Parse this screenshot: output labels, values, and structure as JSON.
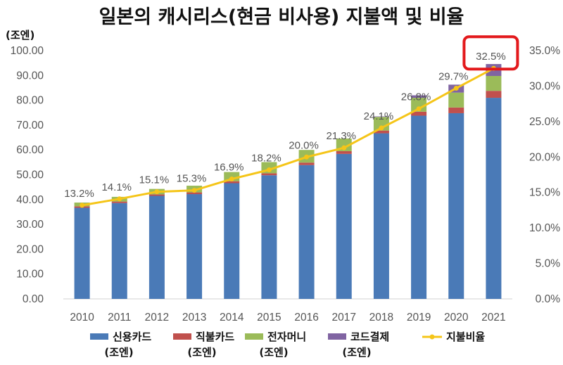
{
  "chart_data": {
    "type": "bar",
    "title": "일본의 캐시리스(현금 비사용) 지불액 및 비율",
    "left_axis_unit": "(조엔)",
    "categories": [
      "2010",
      "2011",
      "2012",
      "2013",
      "2014",
      "2015",
      "2016",
      "2017",
      "2018",
      "2019",
      "2020",
      "2021"
    ],
    "y_left_ticks": [
      "0.00",
      "10.00",
      "20.00",
      "30.00",
      "40.00",
      "50.00",
      "60.00",
      "70.00",
      "80.00",
      "90.00",
      "100.00"
    ],
    "y_right_ticks": [
      "0.0%",
      "5.0%",
      "10.0%",
      "15.0%",
      "20.0%",
      "25.0%",
      "30.0%",
      "35.0%"
    ],
    "ylim_left": [
      0,
      100
    ],
    "ylim_right": [
      0,
      35
    ],
    "stacked": true,
    "series": [
      {
        "name": "신용카드",
        "name_unit": "(조엔)",
        "color": "#4a7ab7",
        "values": [
          36.7,
          38.6,
          41.5,
          42.2,
          46.6,
          49.8,
          53.9,
          58.4,
          66.7,
          73.8,
          74.8,
          81.0
        ]
      },
      {
        "name": "직불카드",
        "name_unit": "(조엔)",
        "color": "#c0504d",
        "values": [
          0.6,
          0.6,
          0.6,
          0.7,
          0.8,
          0.8,
          1.0,
          1.1,
          1.1,
          1.6,
          2.3,
          2.8
        ]
      },
      {
        "name": "전자머니",
        "name_unit": "(조엔)",
        "color": "#9bbb59",
        "values": [
          1.5,
          1.9,
          2.2,
          2.7,
          3.7,
          4.5,
          5.1,
          5.1,
          5.5,
          5.6,
          6.0,
          6.0
        ]
      },
      {
        "name": "코드결제",
        "name_unit": "(조엔)",
        "color": "#8064a2",
        "values": [
          0,
          0,
          0,
          0,
          0,
          0,
          0,
          0,
          0.2,
          1.0,
          3.2,
          4.8
        ]
      }
    ],
    "line_series": {
      "name": "지불비율",
      "color": "#f5c518",
      "axis": "right",
      "values": [
        13.2,
        14.1,
        15.1,
        15.3,
        16.9,
        18.2,
        20.0,
        21.3,
        24.1,
        26.8,
        29.7,
        32.5
      ],
      "labels": [
        "13.2%",
        "14.1%",
        "15.1%",
        "15.3%",
        "16.9%",
        "18.2%",
        "20.0%",
        "21.3%",
        "24.1%",
        "26.8%",
        "29.7%",
        "32.5%"
      ]
    },
    "highlight": {
      "category": "2021",
      "color": "#e3191c"
    },
    "grid": false,
    "legend_position": "bottom"
  }
}
